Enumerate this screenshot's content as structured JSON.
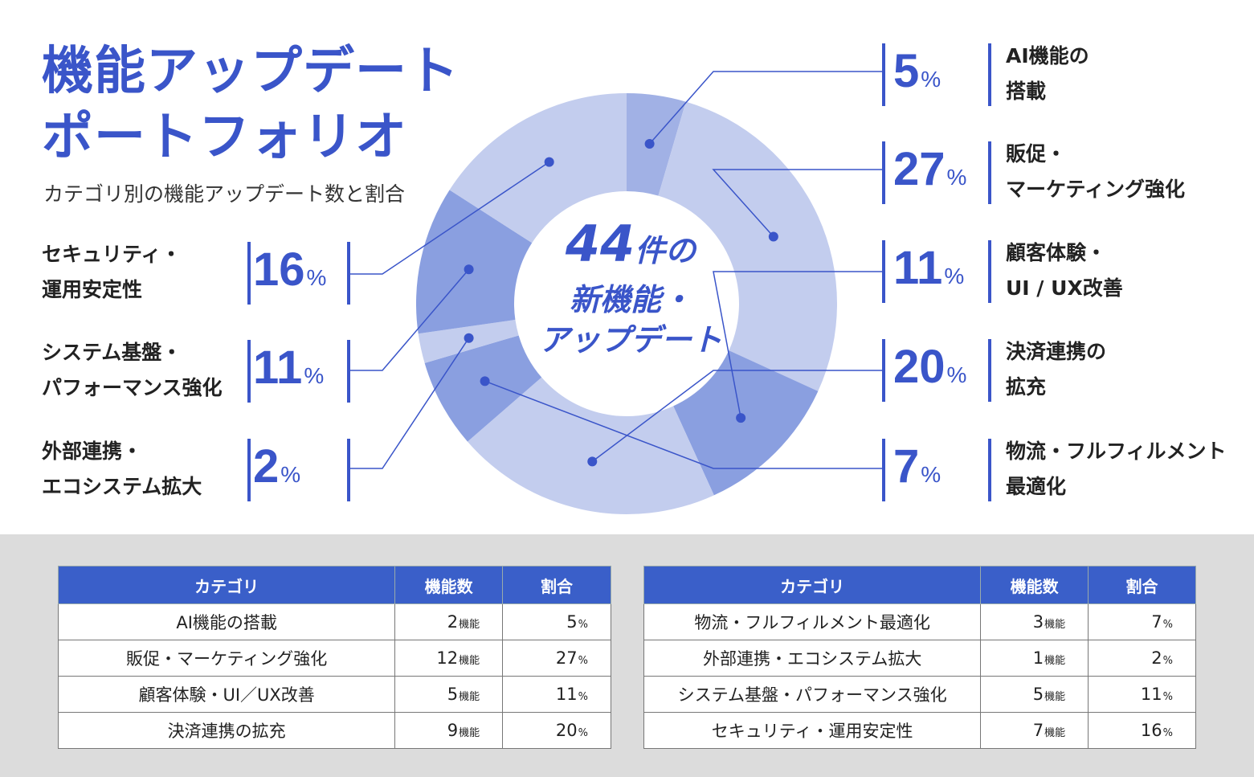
{
  "title_line1": "機能アップデート",
  "title_line2": "ポートフォリオ",
  "subtitle": "カテゴリ別の機能アップデート数と割合",
  "center": {
    "number": "44",
    "suffix": "件の",
    "line2": "新機能・",
    "line3": "アップデート"
  },
  "colors": {
    "accent": "#3a55c9",
    "light": "#c3cdee",
    "medium": "#a4b3e6",
    "dark": "#8a9fe0",
    "connector": "#3a55c9"
  },
  "chart_data": {
    "type": "pie",
    "total": 44,
    "slices": [
      {
        "label_l1": "AI機能の",
        "label_l2": "搭載",
        "percent": "5",
        "count": 2,
        "color": "#a1b1e5"
      },
      {
        "label_l1": "販促・",
        "label_l2": "マーケティング強化",
        "percent": "27",
        "count": 12,
        "color": "#c3cdee"
      },
      {
        "label_l1": "顧客体験・",
        "label_l2": "UI / UX改善",
        "percent": "11",
        "count": 5,
        "color": "#8a9fe0"
      },
      {
        "label_l1": "決済連携の",
        "label_l2": "拡充",
        "percent": "20",
        "count": 9,
        "color": "#c3cdee"
      },
      {
        "label_l1": "物流・フルフィルメント",
        "label_l2": "最適化",
        "percent": "7",
        "count": 3,
        "color": "#8a9fe0"
      },
      {
        "label_l1": "外部連携・",
        "label_l2": "エコシステム拡大",
        "percent": "2",
        "count": 1,
        "color": "#c3cdee"
      },
      {
        "label_l1": "システム基盤・",
        "label_l2": "パフォーマンス強化",
        "percent": "11",
        "count": 5,
        "color": "#8a9fe0"
      },
      {
        "label_l1": "セキュリティ・",
        "label_l2": "運用安定性",
        "percent": "16",
        "count": 7,
        "color": "#c3cdee"
      }
    ],
    "unit": "%"
  },
  "tables": {
    "headers": [
      "カテゴリ",
      "機能数",
      "割合"
    ],
    "count_unit": "機能",
    "pct_unit": "%",
    "left_rows": [
      {
        "category": "AI機能の搭載",
        "count": "2",
        "pct": "5"
      },
      {
        "category": "販促・マーケティング強化",
        "count": "12",
        "pct": "27"
      },
      {
        "category": "顧客体験・UI／UX改善",
        "count": "5",
        "pct": "11"
      },
      {
        "category": "決済連携の拡充",
        "count": "9",
        "pct": "20"
      }
    ],
    "right_rows": [
      {
        "category": "物流・フルフィルメント最適化",
        "count": "3",
        "pct": "7"
      },
      {
        "category": "外部連携・エコシステム拡大",
        "count": "1",
        "pct": "2"
      },
      {
        "category": "システム基盤・パフォーマンス強化",
        "count": "5",
        "pct": "11"
      },
      {
        "category": "セキュリティ・運用安定性",
        "count": "7",
        "pct": "16"
      }
    ]
  }
}
